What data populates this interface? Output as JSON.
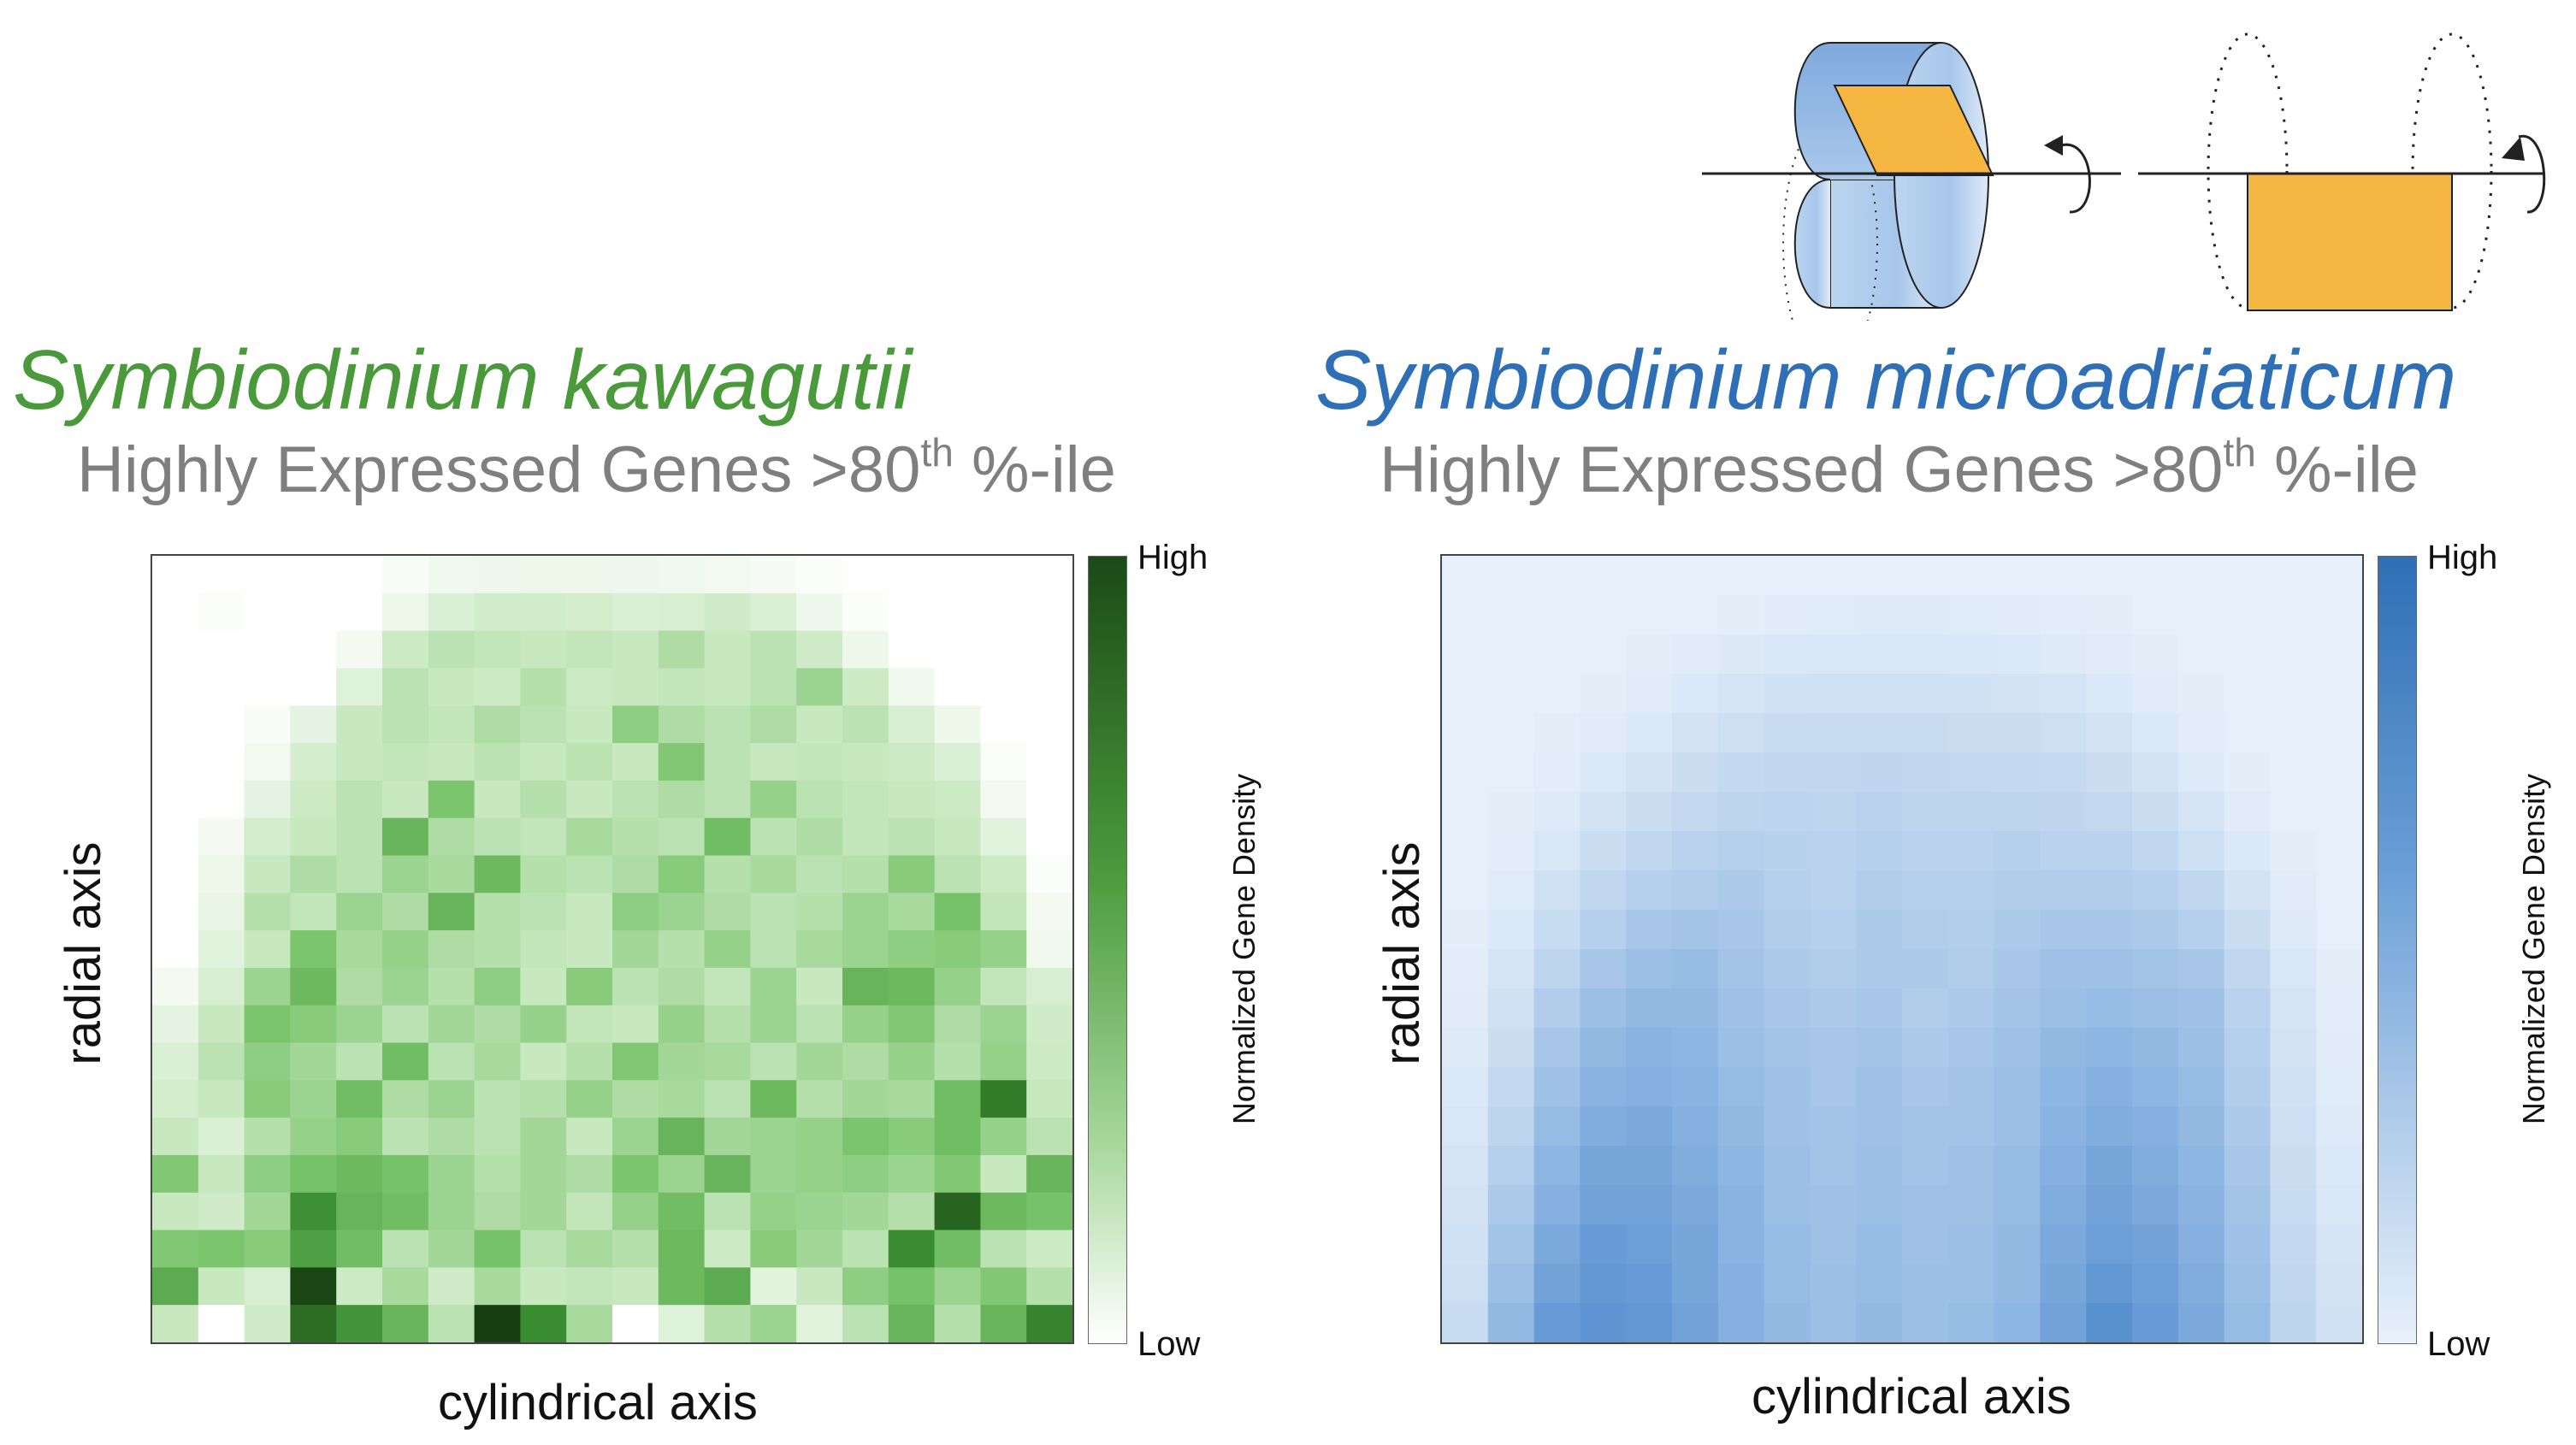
{
  "colors": {
    "green_title": "#4a9a3c",
    "blue_title": "#2f6fb5",
    "subtitle": "#7f7f7f",
    "orange": "#f5b642",
    "blue_light": "#cfe0f4",
    "blue_mid": "#8fb8e4"
  },
  "panels": [
    {
      "id": "left",
      "title": "Symbiodinium kawagutii",
      "subtitle_pre": "Highly Expressed Genes >80",
      "subtitle_sup": "th",
      "subtitle_post": " %-ile"
    },
    {
      "id": "right",
      "title": "Symbiodinium microadriaticum",
      "subtitle_pre": "Highly Expressed Genes >80",
      "subtitle_sup": "th",
      "subtitle_post": " %-ile"
    }
  ],
  "chart_data": [
    {
      "type": "heatmap",
      "title": "Symbiodinium kawagutii",
      "xlabel": "cylindrical axis",
      "ylabel": "radial axis",
      "colorbar_label": "Normalized Gene Density",
      "colorbar_ticks": [
        "High",
        "Low"
      ],
      "colormap": "greens",
      "grid_rows": 20,
      "grid_cols": 20,
      "values": [
        [
          0,
          0,
          0,
          0,
          0,
          0.04,
          0.08,
          0.09,
          0.1,
          0.1,
          0.09,
          0.08,
          0.07,
          0.05,
          0.02,
          0,
          0,
          0,
          0,
          0
        ],
        [
          0,
          0.02,
          0,
          0,
          0,
          0.1,
          0.2,
          0.25,
          0.25,
          0.24,
          0.2,
          0.22,
          0.26,
          0.2,
          0.09,
          0.02,
          0,
          0,
          0,
          0
        ],
        [
          0,
          0,
          0,
          0,
          0.06,
          0.28,
          0.34,
          0.32,
          0.3,
          0.32,
          0.3,
          0.38,
          0.3,
          0.34,
          0.26,
          0.1,
          0,
          0,
          0,
          0
        ],
        [
          0,
          0,
          0,
          0,
          0.18,
          0.34,
          0.3,
          0.28,
          0.36,
          0.28,
          0.3,
          0.32,
          0.3,
          0.34,
          0.44,
          0.28,
          0.08,
          0,
          0,
          0
        ],
        [
          0,
          0,
          0.04,
          0.14,
          0.3,
          0.34,
          0.32,
          0.38,
          0.34,
          0.3,
          0.48,
          0.38,
          0.34,
          0.38,
          0.3,
          0.34,
          0.22,
          0.1,
          0,
          0
        ],
        [
          0,
          0,
          0.07,
          0.24,
          0.3,
          0.32,
          0.3,
          0.34,
          0.3,
          0.34,
          0.3,
          0.52,
          0.34,
          0.3,
          0.32,
          0.3,
          0.28,
          0.2,
          0.02,
          0
        ],
        [
          0,
          0,
          0.14,
          0.28,
          0.34,
          0.3,
          0.54,
          0.3,
          0.36,
          0.3,
          0.34,
          0.38,
          0.34,
          0.46,
          0.34,
          0.32,
          0.3,
          0.28,
          0.06,
          0
        ],
        [
          0,
          0.06,
          0.24,
          0.3,
          0.34,
          0.62,
          0.38,
          0.34,
          0.32,
          0.4,
          0.36,
          0.34,
          0.58,
          0.34,
          0.38,
          0.32,
          0.34,
          0.3,
          0.16,
          0
        ],
        [
          0,
          0.1,
          0.3,
          0.38,
          0.34,
          0.44,
          0.4,
          0.6,
          0.36,
          0.34,
          0.38,
          0.5,
          0.36,
          0.4,
          0.34,
          0.36,
          0.5,
          0.34,
          0.28,
          0.02
        ],
        [
          0,
          0.12,
          0.36,
          0.32,
          0.44,
          0.38,
          0.62,
          0.36,
          0.34,
          0.3,
          0.48,
          0.44,
          0.38,
          0.34,
          0.36,
          0.44,
          0.4,
          0.56,
          0.32,
          0.06
        ],
        [
          0,
          0.16,
          0.3,
          0.54,
          0.4,
          0.46,
          0.38,
          0.36,
          0.32,
          0.3,
          0.42,
          0.36,
          0.46,
          0.34,
          0.4,
          0.44,
          0.48,
          0.5,
          0.46,
          0.08
        ],
        [
          0.06,
          0.22,
          0.44,
          0.6,
          0.38,
          0.44,
          0.36,
          0.48,
          0.3,
          0.5,
          0.34,
          0.38,
          0.32,
          0.44,
          0.3,
          0.62,
          0.6,
          0.46,
          0.32,
          0.22
        ],
        [
          0.14,
          0.3,
          0.54,
          0.5,
          0.44,
          0.34,
          0.42,
          0.38,
          0.46,
          0.32,
          0.3,
          0.46,
          0.36,
          0.44,
          0.34,
          0.46,
          0.52,
          0.38,
          0.44,
          0.26
        ],
        [
          0.2,
          0.34,
          0.48,
          0.42,
          0.34,
          0.58,
          0.34,
          0.4,
          0.3,
          0.36,
          0.52,
          0.42,
          0.4,
          0.34,
          0.42,
          0.38,
          0.46,
          0.36,
          0.46,
          0.28
        ],
        [
          0.24,
          0.3,
          0.5,
          0.44,
          0.58,
          0.38,
          0.44,
          0.34,
          0.36,
          0.46,
          0.38,
          0.4,
          0.34,
          0.6,
          0.36,
          0.42,
          0.4,
          0.58,
          0.84,
          0.3
        ],
        [
          0.3,
          0.2,
          0.36,
          0.46,
          0.5,
          0.34,
          0.38,
          0.34,
          0.42,
          0.3,
          0.44,
          0.62,
          0.42,
          0.44,
          0.46,
          0.54,
          0.5,
          0.58,
          0.46,
          0.34
        ],
        [
          0.52,
          0.3,
          0.48,
          0.56,
          0.6,
          0.56,
          0.44,
          0.36,
          0.42,
          0.38,
          0.54,
          0.44,
          0.62,
          0.44,
          0.46,
          0.48,
          0.44,
          0.52,
          0.3,
          0.62
        ],
        [
          0.3,
          0.26,
          0.42,
          0.78,
          0.62,
          0.58,
          0.44,
          0.38,
          0.42,
          0.32,
          0.46,
          0.58,
          0.34,
          0.46,
          0.44,
          0.42,
          0.36,
          0.9,
          0.6,
          0.56
        ],
        [
          0.52,
          0.54,
          0.5,
          0.72,
          0.58,
          0.34,
          0.42,
          0.56,
          0.34,
          0.4,
          0.36,
          0.6,
          0.28,
          0.5,
          0.42,
          0.34,
          0.8,
          0.58,
          0.34,
          0.28
        ],
        [
          0.66,
          0.3,
          0.22,
          0.98,
          0.28,
          0.4,
          0.26,
          0.4,
          0.3,
          0.32,
          0.3,
          0.6,
          0.66,
          0.16,
          0.3,
          0.48,
          0.56,
          0.44,
          0.52,
          0.36
        ]
      ],
      "bottom_row_partial": [
        0.3,
        0,
        0.26,
        0.88,
        0.76,
        0.62,
        0.34,
        1.0,
        0.8,
        0.4,
        0,
        0.18,
        0.36,
        0.44,
        0.16,
        0.34,
        0.62,
        0.36,
        0.62,
        0.82
      ]
    },
    {
      "type": "heatmap",
      "title": "Symbiodinium microadriaticum",
      "xlabel": "cylindrical axis",
      "ylabel": "radial axis",
      "colorbar_label": "Normalized Gene Density",
      "colorbar_ticks": [
        "High",
        "Low"
      ],
      "colormap": "blues",
      "grid_rows": 20,
      "grid_cols": 20,
      "values": [
        [
          0.03,
          0.03,
          0.03,
          0.03,
          0.03,
          0.03,
          0.03,
          0.03,
          0.03,
          0.03,
          0.03,
          0.03,
          0.03,
          0.03,
          0.03,
          0.03,
          0.03,
          0.03,
          0.03,
          0.03
        ],
        [
          0.03,
          0.03,
          0.03,
          0.03,
          0.03,
          0.03,
          0.04,
          0.06,
          0.07,
          0.08,
          0.08,
          0.07,
          0.06,
          0.05,
          0.04,
          0.03,
          0.03,
          0.03,
          0.03,
          0.03
        ],
        [
          0.03,
          0.03,
          0.03,
          0.03,
          0.04,
          0.06,
          0.09,
          0.11,
          0.12,
          0.12,
          0.12,
          0.11,
          0.1,
          0.08,
          0.06,
          0.04,
          0.03,
          0.03,
          0.03,
          0.03
        ],
        [
          0.03,
          0.03,
          0.03,
          0.04,
          0.06,
          0.1,
          0.14,
          0.17,
          0.18,
          0.18,
          0.18,
          0.17,
          0.16,
          0.14,
          0.1,
          0.06,
          0.04,
          0.03,
          0.03,
          0.03
        ],
        [
          0.03,
          0.03,
          0.04,
          0.06,
          0.1,
          0.16,
          0.2,
          0.23,
          0.24,
          0.24,
          0.24,
          0.22,
          0.22,
          0.2,
          0.16,
          0.1,
          0.05,
          0.03,
          0.03,
          0.03
        ],
        [
          0.03,
          0.03,
          0.05,
          0.1,
          0.16,
          0.22,
          0.26,
          0.28,
          0.28,
          0.29,
          0.28,
          0.27,
          0.26,
          0.25,
          0.22,
          0.16,
          0.08,
          0.04,
          0.03,
          0.03
        ],
        [
          0.03,
          0.04,
          0.08,
          0.16,
          0.22,
          0.26,
          0.3,
          0.31,
          0.3,
          0.32,
          0.3,
          0.3,
          0.3,
          0.29,
          0.27,
          0.22,
          0.14,
          0.06,
          0.03,
          0.03
        ],
        [
          0.03,
          0.05,
          0.12,
          0.22,
          0.28,
          0.32,
          0.34,
          0.33,
          0.32,
          0.34,
          0.32,
          0.32,
          0.34,
          0.32,
          0.32,
          0.28,
          0.2,
          0.1,
          0.04,
          0.03
        ],
        [
          0.03,
          0.07,
          0.18,
          0.28,
          0.34,
          0.36,
          0.38,
          0.34,
          0.32,
          0.36,
          0.34,
          0.34,
          0.36,
          0.36,
          0.36,
          0.34,
          0.28,
          0.16,
          0.06,
          0.03
        ],
        [
          0.04,
          0.1,
          0.24,
          0.34,
          0.4,
          0.42,
          0.4,
          0.36,
          0.34,
          0.38,
          0.36,
          0.35,
          0.38,
          0.4,
          0.4,
          0.38,
          0.34,
          0.22,
          0.08,
          0.03
        ],
        [
          0.05,
          0.14,
          0.3,
          0.4,
          0.46,
          0.48,
          0.42,
          0.38,
          0.36,
          0.38,
          0.38,
          0.36,
          0.4,
          0.44,
          0.44,
          0.42,
          0.4,
          0.28,
          0.12,
          0.04
        ],
        [
          0.06,
          0.18,
          0.36,
          0.46,
          0.5,
          0.5,
          0.44,
          0.4,
          0.38,
          0.4,
          0.36,
          0.38,
          0.42,
          0.46,
          0.48,
          0.46,
          0.44,
          0.32,
          0.14,
          0.05
        ],
        [
          0.08,
          0.22,
          0.4,
          0.5,
          0.54,
          0.52,
          0.46,
          0.42,
          0.4,
          0.42,
          0.38,
          0.4,
          0.44,
          0.5,
          0.52,
          0.5,
          0.46,
          0.34,
          0.16,
          0.06
        ],
        [
          0.1,
          0.26,
          0.44,
          0.54,
          0.56,
          0.54,
          0.48,
          0.44,
          0.4,
          0.44,
          0.4,
          0.42,
          0.46,
          0.52,
          0.56,
          0.52,
          0.48,
          0.36,
          0.18,
          0.07
        ],
        [
          0.12,
          0.3,
          0.48,
          0.58,
          0.6,
          0.56,
          0.5,
          0.44,
          0.42,
          0.44,
          0.42,
          0.42,
          0.46,
          0.54,
          0.58,
          0.56,
          0.5,
          0.38,
          0.2,
          0.08
        ],
        [
          0.14,
          0.34,
          0.52,
          0.62,
          0.62,
          0.58,
          0.52,
          0.46,
          0.42,
          0.46,
          0.42,
          0.44,
          0.48,
          0.56,
          0.62,
          0.58,
          0.52,
          0.4,
          0.22,
          0.1
        ],
        [
          0.16,
          0.38,
          0.56,
          0.64,
          0.64,
          0.6,
          0.54,
          0.46,
          0.44,
          0.46,
          0.44,
          0.44,
          0.48,
          0.58,
          0.64,
          0.6,
          0.54,
          0.42,
          0.24,
          0.12
        ],
        [
          0.18,
          0.42,
          0.6,
          0.68,
          0.66,
          0.62,
          0.54,
          0.48,
          0.44,
          0.48,
          0.44,
          0.46,
          0.5,
          0.6,
          0.66,
          0.64,
          0.56,
          0.44,
          0.26,
          0.14
        ],
        [
          0.2,
          0.46,
          0.64,
          0.7,
          0.68,
          0.62,
          0.56,
          0.48,
          0.46,
          0.48,
          0.46,
          0.46,
          0.5,
          0.62,
          0.7,
          0.66,
          0.58,
          0.46,
          0.28,
          0.16
        ],
        [
          0.24,
          0.5,
          0.68,
          0.72,
          0.7,
          0.64,
          0.56,
          0.5,
          0.46,
          0.5,
          0.46,
          0.48,
          0.52,
          0.64,
          0.74,
          0.68,
          0.6,
          0.48,
          0.3,
          0.18
        ]
      ]
    }
  ]
}
